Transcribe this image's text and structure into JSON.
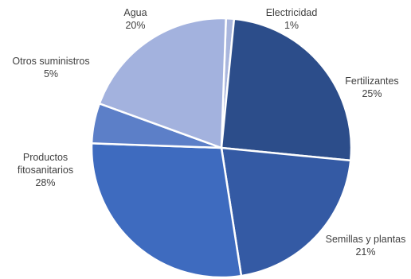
{
  "chart_data": {
    "type": "pie",
    "title": "",
    "slices": [
      {
        "name": "Electricidad",
        "value": 1,
        "label": "1%",
        "color": "#a9b6dd"
      },
      {
        "name": "Fertilizantes",
        "value": 25,
        "label": "25%",
        "color": "#2c4d8a"
      },
      {
        "name": "Semillas y plantas",
        "value": 21,
        "label": "21%",
        "color": "#345aa4"
      },
      {
        "name": "Productos fitosanitarios",
        "value": 28,
        "label": "28%",
        "color": "#3e6bbf"
      },
      {
        "name": "Otros suministros",
        "value": 5,
        "label": "5%",
        "color": "#5c7fc8"
      },
      {
        "name": "Agua",
        "value": 20,
        "label": "20%",
        "color": "#a3b2de"
      }
    ],
    "legend": "none"
  }
}
